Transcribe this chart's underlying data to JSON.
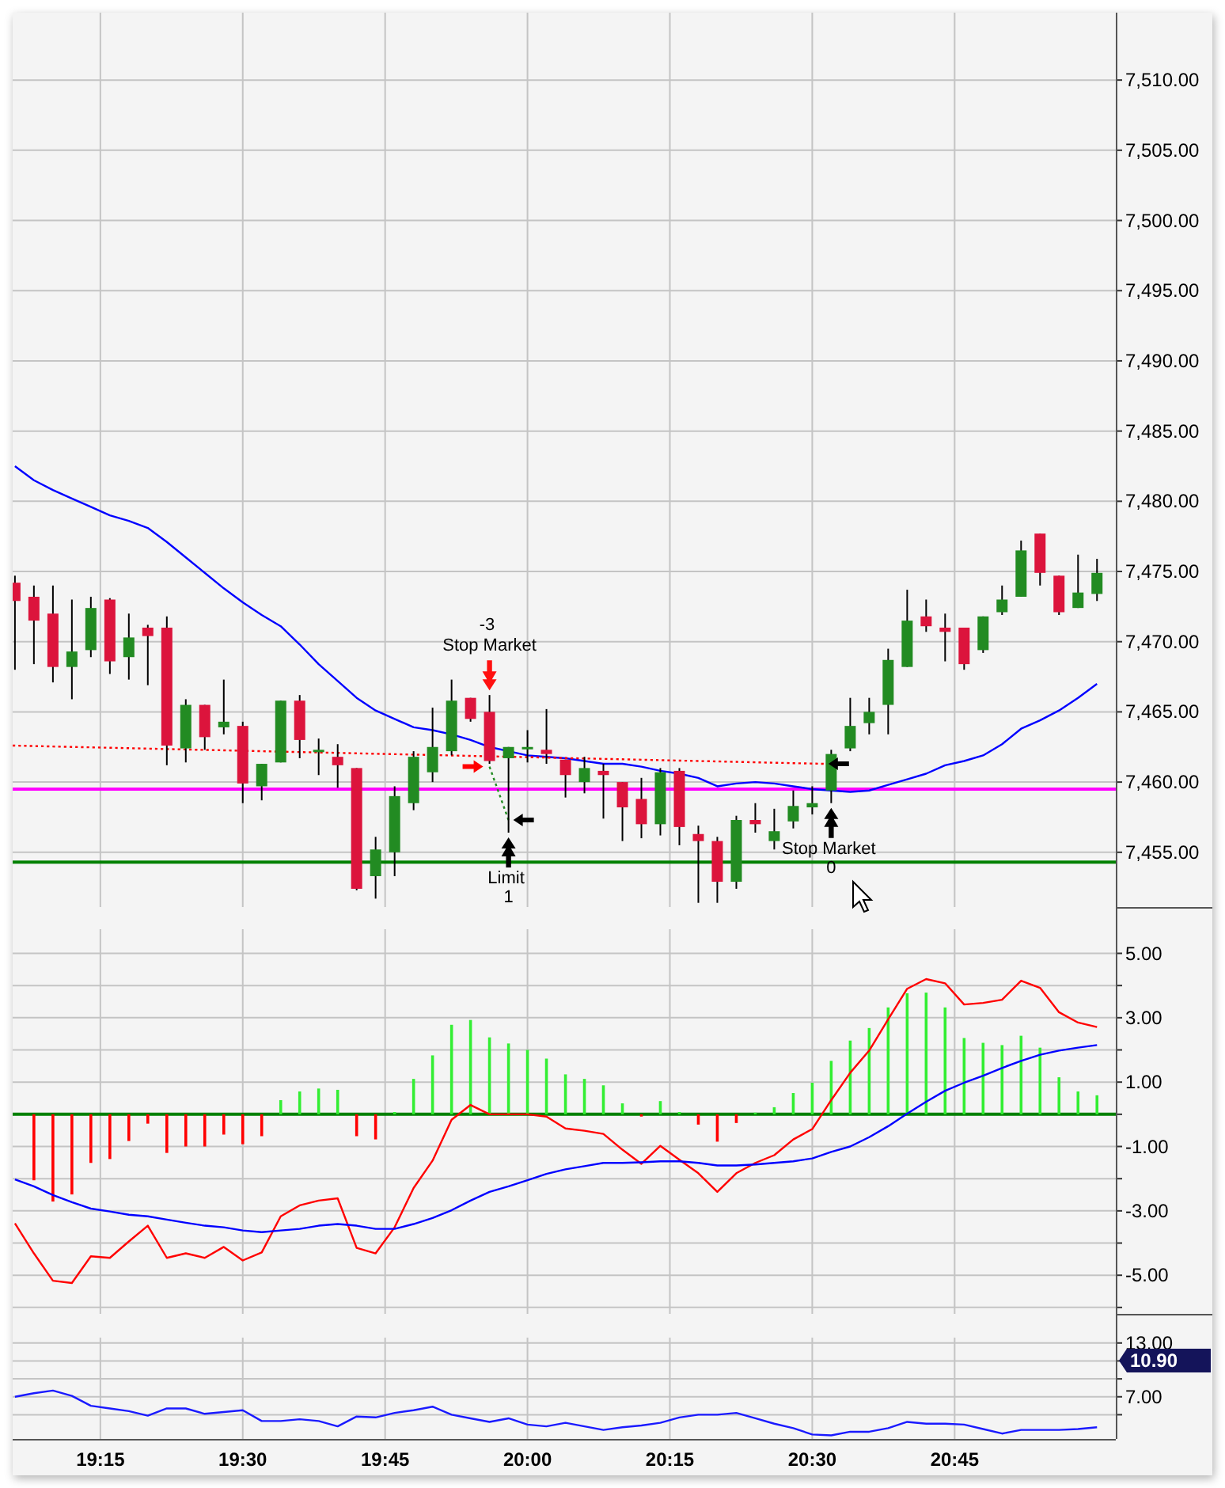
{
  "chart_data": [
    {
      "type": "candlestick",
      "x": [
        19.1,
        19.1333,
        19.1667,
        19.2,
        19.2333,
        19.2667,
        19.3,
        19.3333,
        19.3667,
        19.4,
        19.4333,
        19.4667,
        19.5,
        19.5333,
        19.5667,
        19.6,
        19.6333,
        19.6667,
        19.7,
        19.7333,
        19.7667,
        19.8,
        19.8333,
        19.8667,
        19.9,
        19.9333,
        19.9667,
        20,
        20.0333,
        20.0667,
        20.1,
        20.1333,
        20.1667,
        20.2,
        20.2333,
        20.2667,
        20.3,
        20.3333,
        20.3667,
        20.4,
        20.4333,
        20.4667,
        20.5,
        20.5333,
        20.5667,
        20.6,
        20.6333,
        20.6667,
        20.7,
        20.7333,
        20.7667,
        20.8,
        20.8333,
        20.8667,
        20.9,
        20.9333,
        20.9667,
        21
      ],
      "ohlc": [
        [
          7474.2,
          7474.7,
          7468.0,
          7472.9
        ],
        [
          7473.2,
          7474.0,
          7468.4,
          7471.5
        ],
        [
          7472.0,
          7474.0,
          7467.1,
          7468.2
        ],
        [
          7468.2,
          7473.0,
          7465.9,
          7469.3
        ],
        [
          7469.4,
          7473.2,
          7468.9,
          7472.4
        ],
        [
          7473.0,
          7473.1,
          7467.7,
          7468.6
        ],
        [
          7468.9,
          7472.0,
          7467.3,
          7470.3
        ],
        [
          7471.0,
          7471.2,
          7466.9,
          7470.4
        ],
        [
          7471.0,
          7471.8,
          7461.2,
          7462.6
        ],
        [
          7462.4,
          7465.9,
          7461.4,
          7465.5
        ],
        [
          7465.5,
          7465.5,
          7462.3,
          7463.2
        ],
        [
          7463.9,
          7467.3,
          7463.4,
          7464.3
        ],
        [
          7464.0,
          7464.3,
          7458.5,
          7459.9
        ],
        [
          7459.7,
          7461.3,
          7458.7,
          7461.3
        ],
        [
          7461.4,
          7465.8,
          7461.4,
          7465.8
        ],
        [
          7465.8,
          7466.2,
          7461.7,
          7463.0
        ],
        [
          7462.2,
          7463.1,
          7460.5,
          7462.3
        ],
        [
          7461.8,
          7462.7,
          7459.6,
          7461.2
        ],
        [
          7461.0,
          7461.0,
          7452.3,
          7452.4
        ],
        [
          7453.3,
          7456.1,
          7451.7,
          7455.2
        ],
        [
          7455.0,
          7459.7,
          7453.3,
          7459.0
        ],
        [
          7458.5,
          7462.2,
          7458.0,
          7461.8
        ],
        [
          7460.7,
          7465.3,
          7460.0,
          7462.5
        ],
        [
          7462.2,
          7467.3,
          7461.9,
          7465.8
        ],
        [
          7466.0,
          7466.0,
          7464.3,
          7464.5
        ],
        [
          7465.0,
          7466.2,
          7461.3,
          7461.5
        ],
        [
          7461.7,
          7462.5,
          7456.4,
          7462.5
        ],
        [
          7462.4,
          7463.7,
          7461.4,
          7462.5
        ],
        [
          7462.3,
          7465.2,
          7461.3,
          7462.0
        ],
        [
          7461.6,
          7461.6,
          7458.9,
          7460.5
        ],
        [
          7460.0,
          7461.8,
          7459.2,
          7461.0
        ],
        [
          7460.8,
          7461.3,
          7457.4,
          7460.5
        ],
        [
          7460.0,
          7460.0,
          7455.8,
          7458.2
        ],
        [
          7458.8,
          7460.3,
          7456.0,
          7457.0
        ],
        [
          7457.0,
          7461.0,
          7456.2,
          7460.7
        ],
        [
          7460.8,
          7461.0,
          7455.5,
          7456.8
        ],
        [
          7456.3,
          7456.9,
          7451.4,
          7455.8
        ],
        [
          7455.8,
          7456.1,
          7451.4,
          7452.9
        ],
        [
          7452.9,
          7457.6,
          7452.4,
          7457.3
        ],
        [
          7457.3,
          7458.5,
          7456.4,
          7457.0
        ],
        [
          7455.8,
          7458.1,
          7455.2,
          7456.5
        ],
        [
          7457.2,
          7459.4,
          7456.7,
          7458.3
        ],
        [
          7458.2,
          7459.7,
          7457.7,
          7458.5
        ],
        [
          7459.4,
          7462.3,
          7458.5,
          7462.0
        ],
        [
          7462.4,
          7466.0,
          7462.2,
          7464.0
        ],
        [
          7464.2,
          7466.0,
          7463.4,
          7465.0
        ],
        [
          7465.5,
          7469.5,
          7463.4,
          7468.7
        ],
        [
          7468.2,
          7473.7,
          7468.2,
          7471.5
        ],
        [
          7471.8,
          7473.0,
          7470.7,
          7471.1
        ],
        [
          7471.0,
          7472.0,
          7468.6,
          7470.7
        ],
        [
          7471.0,
          7471.0,
          7468.0,
          7468.4
        ],
        [
          7469.4,
          7471.8,
          7469.2,
          7471.8
        ],
        [
          7472.1,
          7474.0,
          7471.9,
          7473.0
        ],
        [
          7473.2,
          7477.2,
          7473.2,
          7476.5
        ],
        [
          7477.7,
          7477.7,
          7474.0,
          7474.9
        ],
        [
          7474.7,
          7474.7,
          7471.9,
          7472.1
        ],
        [
          7472.4,
          7476.2,
          7472.4,
          7473.5
        ],
        [
          7473.4,
          7475.9,
          7472.9,
          7474.9
        ]
      ],
      "colors": [
        "#dc143c",
        "#dc143c",
        "#dc143c",
        "#228b22",
        "#228b22",
        "#dc143c",
        "#228b22",
        "#dc143c",
        "#dc143c",
        "#228b22",
        "#dc143c",
        "#228b22",
        "#dc143c",
        "#228b22",
        "#228b22",
        "#dc143c",
        "#228b22",
        "#dc143c",
        "#dc143c",
        "#228b22",
        "#228b22",
        "#228b22",
        "#228b22",
        "#228b22",
        "#dc143c",
        "#dc143c",
        "#228b22",
        "#228b22",
        "#dc143c",
        "#dc143c",
        "#228b22",
        "#dc143c",
        "#dc143c",
        "#dc143c",
        "#228b22",
        "#dc143c",
        "#dc143c",
        "#dc143c",
        "#228b22",
        "#dc143c",
        "#228b22",
        "#228b22",
        "#228b22",
        "#228b22",
        "#228b22",
        "#228b22",
        "#228b22",
        "#228b22",
        "#dc143c",
        "#dc143c",
        "#dc143c",
        "#228b22",
        "#228b22",
        "#228b22",
        "#dc143c",
        "#dc143c",
        "#228b22",
        "#228b22"
      ],
      "series": [
        {
          "type": "line",
          "color": "#0000ff",
          "values": [
            7482.5,
            7481.5,
            7480.8,
            7480.2,
            7479.6,
            7479.0,
            7478.6,
            7478.1,
            7477.1,
            7476.0,
            7474.9,
            7473.8,
            7472.8,
            7471.9,
            7471.1,
            7469.8,
            7468.4,
            7467.2,
            7466.0,
            7465.1,
            7464.5,
            7463.9,
            7463.7,
            7463.4,
            7463.0,
            7462.5,
            7462.2,
            7461.9,
            7461.8,
            7461.7,
            7461.5,
            7461.3,
            7461.3,
            7461.1,
            7460.8,
            7460.6,
            7460.3,
            7459.7,
            7459.9,
            7460.0,
            7459.9,
            7459.7,
            7459.5,
            7459.4,
            7459.3,
            7459.4,
            7459.8,
            7460.2,
            7460.6,
            7461.2,
            7461.5,
            7461.9,
            7462.7,
            7463.8,
            7464.4,
            7465.1,
            7466.0,
            7467.0
          ]
        },
        {
          "type": "line",
          "line_style": "dotted",
          "color": "#ff0000",
          "x": [
            19.096,
            20.52
          ],
          "values": [
            7462.6,
            7461.3
          ]
        },
        {
          "type": "line",
          "line_style": "dotted",
          "color": "#228b22",
          "x": [
            19.9333,
            19.9667
          ],
          "values": [
            7461.1,
            7457.3
          ]
        }
      ],
      "ref_lines": [
        {
          "axis": "y",
          "value": 7459.5,
          "color": "#ff00ff"
        },
        {
          "axis": "y",
          "value": 7454.3,
          "color": "#008000"
        }
      ],
      "annotations": [
        {
          "text": "-3\nStop Market",
          "x": 19.9333,
          "y": 7466.2
        },
        {
          "text": "Limit\n1",
          "x": 19.9667,
          "y": 7456.4
        },
        {
          "text": "Stop Market\n0",
          "x": 20.5333,
          "y": 7458.5
        }
      ],
      "xlim": [
        19.096,
        21.033
      ],
      "ylim": [
        7451.1,
        7514.8
      ],
      "xticks": [
        {
          "value": 19.25,
          "label": null
        },
        {
          "value": 19.5,
          "label": null
        },
        {
          "value": 19.75,
          "label": null
        },
        {
          "value": 20,
          "label": null
        },
        {
          "value": 20.25,
          "label": null
        },
        {
          "value": 20.5,
          "label": null
        },
        {
          "value": 20.75,
          "label": null
        }
      ],
      "yticks": [
        {
          "value": 7455,
          "label": "7,455.00"
        },
        {
          "value": 7460,
          "label": "7,460.00"
        },
        {
          "value": 7465,
          "label": "7,465.00"
        },
        {
          "value": 7470,
          "label": "7,470.00"
        },
        {
          "value": 7475,
          "label": "7,475.00"
        },
        {
          "value": 7480,
          "label": "7,480.00"
        },
        {
          "value": 7485,
          "label": "7,485.00"
        },
        {
          "value": 7490,
          "label": "7,490.00"
        },
        {
          "value": 7495,
          "label": "7,495.00"
        },
        {
          "value": 7500,
          "label": "7,500.00"
        },
        {
          "value": 7505,
          "label": "7,505.00"
        },
        {
          "value": 7510,
          "label": "7,510.00"
        }
      ],
      "grid": true,
      "tick_labels": "y"
    },
    {
      "type": "bar",
      "x": [
        19.1,
        19.1333,
        19.1667,
        19.2,
        19.2333,
        19.2667,
        19.3,
        19.3333,
        19.3667,
        19.4,
        19.4333,
        19.4667,
        19.5,
        19.5333,
        19.5667,
        19.6,
        19.6333,
        19.6667,
        19.7,
        19.7333,
        19.7667,
        19.8,
        19.8333,
        19.8667,
        19.9,
        19.9333,
        19.9667,
        20,
        20.0333,
        20.0667,
        20.1,
        20.1333,
        20.1667,
        20.2,
        20.2333,
        20.2667,
        20.3,
        20.3333,
        20.3667,
        20.4,
        20.4333,
        20.4667,
        20.5,
        20.5333,
        20.5667,
        20.6,
        20.6333,
        20.6667,
        20.7,
        20.7333,
        20.7667,
        20.8,
        20.8333,
        20.8667,
        20.9,
        20.9333,
        20.9667,
        21
      ],
      "series": [
        {
          "x": [
            19.1333,
            19.1667,
            19.2,
            19.2333,
            19.2667,
            19.3,
            19.3333,
            19.3667,
            19.4,
            19.4333,
            19.4667,
            19.5,
            19.5333,
            19.5667,
            19.6,
            19.6333,
            19.6667,
            19.7,
            19.7333,
            19.7667,
            19.8,
            19.8333,
            19.8667,
            19.9,
            19.9333,
            19.9667,
            20,
            20.0333,
            20.0667,
            20.1,
            20.1333,
            20.1667,
            20.2,
            20.2333,
            20.2667,
            20.3,
            20.3333,
            20.3667,
            20.4,
            20.4333,
            20.4667,
            20.5,
            20.5333,
            20.5667,
            20.6,
            20.6333,
            20.6667,
            20.7,
            20.7333,
            20.7667,
            20.8,
            20.8333,
            20.8667,
            20.9,
            20.9333,
            20.9667,
            21
          ],
          "values": [
            -2.05,
            -2.71,
            -2.49,
            -1.51,
            -1.39,
            -0.83,
            -0.29,
            -1.2,
            -1.0,
            -1.0,
            -0.63,
            -0.93,
            -0.68,
            0.44,
            0.71,
            0.8,
            0.76,
            -0.68,
            -0.78,
            0.07,
            1.1,
            1.83,
            2.78,
            2.93,
            2.39,
            2.2,
            2.0,
            1.73,
            1.24,
            1.1,
            0.9,
            0.34,
            -0.07,
            0.41,
            0.07,
            -0.32,
            -0.85,
            -0.27,
            0.05,
            0.22,
            0.66,
            0.98,
            1.66,
            2.29,
            2.68,
            3.32,
            3.76,
            3.78,
            3.32,
            2.37,
            2.22,
            2.15,
            2.44,
            2.07,
            1.15,
            0.71,
            0.59
          ],
          "colors": [
            "#ff0000",
            "#ff0000",
            "#ff0000",
            "#ff0000",
            "#ff0000",
            "#ff0000",
            "#ff0000",
            "#ff0000",
            "#ff0000",
            "#ff0000",
            "#ff0000",
            "#ff0000",
            "#ff0000",
            "#33ee33",
            "#33ee33",
            "#33ee33",
            "#33ee33",
            "#ff0000",
            "#ff0000",
            "#33ee33",
            "#33ee33",
            "#33ee33",
            "#33ee33",
            "#33ee33",
            "#33ee33",
            "#33ee33",
            "#33ee33",
            "#33ee33",
            "#33ee33",
            "#33ee33",
            "#33ee33",
            "#33ee33",
            "#ff0000",
            "#33ee33",
            "#33ee33",
            "#ff0000",
            "#ff0000",
            "#ff0000",
            "#33ee33",
            "#33ee33",
            "#33ee33",
            "#33ee33",
            "#33ee33",
            "#33ee33",
            "#33ee33",
            "#33ee33",
            "#33ee33",
            "#33ee33",
            "#33ee33",
            "#33ee33",
            "#33ee33",
            "#33ee33",
            "#33ee33",
            "#33ee33",
            "#33ee33",
            "#33ee33",
            "#33ee33"
          ]
        },
        {
          "type": "line",
          "color": "#ff0000",
          "values": [
            -3.39,
            -4.32,
            -5.17,
            -5.24,
            -4.41,
            -4.46,
            -3.95,
            -3.46,
            -4.46,
            -4.32,
            -4.46,
            -4.12,
            -4.54,
            -4.29,
            -3.17,
            -2.83,
            -2.68,
            -2.61,
            -4.15,
            -4.32,
            -3.51,
            -2.29,
            -1.44,
            -0.17,
            0.29,
            0,
            0,
            0,
            -0.07,
            -0.44,
            -0.51,
            -0.61,
            -1.1,
            -1.54,
            -0.98,
            -1.41,
            -1.83,
            -2.41,
            -1.83,
            -1.51,
            -1.27,
            -0.78,
            -0.46,
            0.44,
            1.29,
            1.98,
            2.95,
            3.9,
            4.2,
            4.07,
            3.41,
            3.46,
            3.56,
            4.15,
            3.93,
            3.17,
            2.85,
            2.71
          ]
        },
        {
          "type": "line",
          "color": "#0000ff",
          "values": [
            -2.02,
            -2.24,
            -2.51,
            -2.73,
            -2.93,
            -3.02,
            -3.12,
            -3.17,
            -3.27,
            -3.37,
            -3.46,
            -3.51,
            -3.61,
            -3.66,
            -3.61,
            -3.56,
            -3.46,
            -3.41,
            -3.46,
            -3.56,
            -3.56,
            -3.41,
            -3.22,
            -2.98,
            -2.68,
            -2.41,
            -2.24,
            -2.05,
            -1.85,
            -1.71,
            -1.61,
            -1.51,
            -1.51,
            -1.49,
            -1.46,
            -1.46,
            -1.51,
            -1.59,
            -1.59,
            -1.56,
            -1.51,
            -1.46,
            -1.37,
            -1.17,
            -1.0,
            -0.71,
            -0.37,
            0.02,
            0.39,
            0.73,
            0.98,
            1.2,
            1.44,
            1.66,
            1.85,
            1.98,
            2.07,
            2.15
          ]
        }
      ],
      "ref_lines": [
        {
          "axis": "y",
          "value": 0,
          "color": "#008000"
        }
      ],
      "xlim": [
        19.096,
        21.033
      ],
      "ylim": [
        -6.2,
        5.75
      ],
      "xticks": [
        {
          "value": 19.25,
          "label": null
        },
        {
          "value": 19.5,
          "label": null
        },
        {
          "value": 19.75,
          "label": null
        },
        {
          "value": 20,
          "label": null
        },
        {
          "value": 20.25,
          "label": null
        },
        {
          "value": 20.5,
          "label": null
        },
        {
          "value": 20.75,
          "label": null
        }
      ],
      "yticks": [
        {
          "value": 5,
          "label": "5.00"
        },
        {
          "value": 4,
          "label": null
        },
        {
          "value": 3,
          "label": "3.00"
        },
        {
          "value": 2,
          "label": null
        },
        {
          "value": 1,
          "label": "1.00"
        },
        {
          "value": 0,
          "label": null
        },
        {
          "value": -1,
          "label": "-1.00"
        },
        {
          "value": -2,
          "label": null
        },
        {
          "value": -3,
          "label": "-3.00"
        },
        {
          "value": -4,
          "label": null
        },
        {
          "value": -5,
          "label": "-5.00"
        },
        {
          "value": -6,
          "label": null
        }
      ],
      "grid": true,
      "tick_labels": "y"
    },
    {
      "type": "line",
      "x": [
        19.1,
        19.1333,
        19.1667,
        19.2,
        19.2333,
        19.2667,
        19.3,
        19.3333,
        19.3667,
        19.4,
        19.4333,
        19.4667,
        19.5,
        19.5333,
        19.5667,
        19.6,
        19.6333,
        19.6667,
        19.7,
        19.7333,
        19.7667,
        19.8,
        19.8333,
        19.8667,
        19.9,
        19.9333,
        19.9667,
        20,
        20.0333,
        20.0667,
        20.1,
        20.1333,
        20.1667,
        20.2,
        20.2333,
        20.2667,
        20.3,
        20.3333,
        20.3667,
        20.4,
        20.4333,
        20.4667,
        20.5,
        20.5333,
        20.5667,
        20.6,
        20.6333,
        20.6667,
        20.7,
        20.7333,
        20.7667,
        20.8,
        20.8333,
        20.8667,
        20.9,
        20.9333,
        20.9667,
        21
      ],
      "series": [
        {
          "color": "#1a1aff",
          "values": [
            7.0,
            7.4,
            7.7,
            7.1,
            6.0,
            5.7,
            5.4,
            4.9,
            5.7,
            5.7,
            5.1,
            5.3,
            5.5,
            4.3,
            4.3,
            4.5,
            4.3,
            3.7,
            4.8,
            4.7,
            5.2,
            5.5,
            5.9,
            5.0,
            4.6,
            4.2,
            4.6,
            3.9,
            3.7,
            4.1,
            3.7,
            3.3,
            3.6,
            3.8,
            4.1,
            4.7,
            5.0,
            5.0,
            5.2,
            4.6,
            4.0,
            3.5,
            2.8,
            2.7,
            3.1,
            3.1,
            3.5,
            4.2,
            4.0,
            4.0,
            3.9,
            3.4,
            2.9,
            3.3,
            3.3,
            3.3,
            3.4,
            3.6
          ]
        }
      ],
      "annotations": [
        "10.90"
      ],
      "xlim": [
        19.096,
        21.033
      ],
      "ylim": [
        2.3,
        13.6
      ],
      "xticks": [
        {
          "value": 19.25,
          "label": "19:15"
        },
        {
          "value": 19.5,
          "label": "19:30"
        },
        {
          "value": 19.75,
          "label": "19:45"
        },
        {
          "value": 20,
          "label": "20:00"
        },
        {
          "value": 20.25,
          "label": "20:15"
        },
        {
          "value": 20.5,
          "label": "20:30"
        },
        {
          "value": 20.75,
          "label": "20:45"
        }
      ],
      "yticks": [
        {
          "value": 13,
          "label": "13.00"
        },
        {
          "value": 11,
          "label": null
        },
        {
          "value": 9,
          "label": null
        },
        {
          "value": 7,
          "label": "7.00"
        },
        {
          "value": 5,
          "label": null
        }
      ],
      "grid": true
    }
  ]
}
